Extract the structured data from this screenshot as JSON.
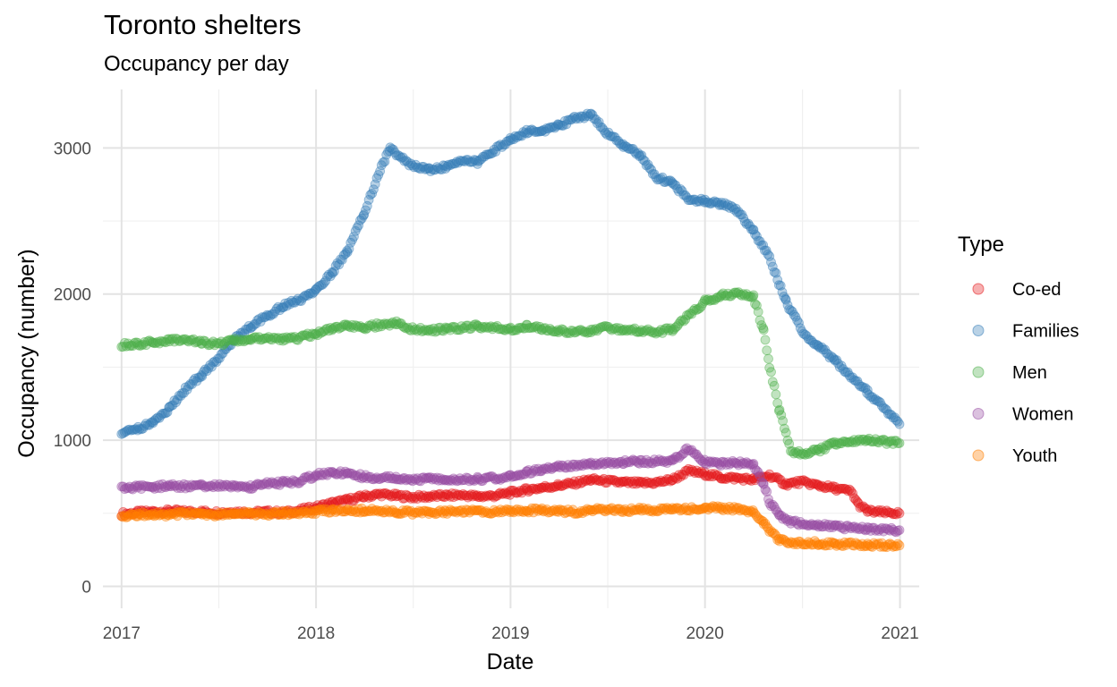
{
  "chart_data": {
    "type": "scatter",
    "title": "Toronto shelters",
    "subtitle": "Occupancy per day",
    "xlabel": "Date",
    "ylabel": "Occupancy (number)",
    "xlim": [
      "2016-11-27",
      "2021-02-06"
    ],
    "ylim": [
      -150,
      3400
    ],
    "x_ticks": [
      "2017",
      "2018",
      "2019",
      "2020",
      "2021"
    ],
    "x_tick_dates": [
      "2017-01-01",
      "2018-01-01",
      "2019-01-01",
      "2020-01-01",
      "2021-01-01"
    ],
    "y_ticks": [
      0,
      1000,
      2000,
      3000
    ],
    "grid": true,
    "legend": {
      "title": "Type",
      "position": "right"
    },
    "point_alpha": 0.35,
    "series": [
      {
        "name": "Co-ed",
        "color": "#E41A1C",
        "points": [
          [
            "2017-01-01",
            495
          ],
          [
            "2017-02-01",
            505
          ],
          [
            "2017-03-01",
            510
          ],
          [
            "2017-04-01",
            515
          ],
          [
            "2017-05-01",
            510
          ],
          [
            "2017-06-01",
            510
          ],
          [
            "2017-07-01",
            505
          ],
          [
            "2017-08-01",
            510
          ],
          [
            "2017-09-01",
            505
          ],
          [
            "2017-10-01",
            510
          ],
          [
            "2017-11-01",
            505
          ],
          [
            "2017-12-01",
            520
          ],
          [
            "2018-01-01",
            540
          ],
          [
            "2018-02-01",
            570
          ],
          [
            "2018-03-01",
            590
          ],
          [
            "2018-04-01",
            615
          ],
          [
            "2018-05-01",
            630
          ],
          [
            "2018-06-01",
            620
          ],
          [
            "2018-07-01",
            610
          ],
          [
            "2018-08-01",
            615
          ],
          [
            "2018-09-01",
            620
          ],
          [
            "2018-10-01",
            625
          ],
          [
            "2018-11-01",
            615
          ],
          [
            "2018-12-01",
            620
          ],
          [
            "2019-01-01",
            640
          ],
          [
            "2019-02-01",
            660
          ],
          [
            "2019-03-01",
            675
          ],
          [
            "2019-04-01",
            690
          ],
          [
            "2019-05-01",
            705
          ],
          [
            "2019-06-01",
            730
          ],
          [
            "2019-07-01",
            720
          ],
          [
            "2019-08-01",
            710
          ],
          [
            "2019-09-01",
            705
          ],
          [
            "2019-10-01",
            710
          ],
          [
            "2019-11-01",
            730
          ],
          [
            "2019-12-01",
            790
          ],
          [
            "2020-01-01",
            770
          ],
          [
            "2020-02-01",
            745
          ],
          [
            "2020-03-01",
            740
          ],
          [
            "2020-04-01",
            730
          ],
          [
            "2020-05-01",
            760
          ],
          [
            "2020-06-01",
            700
          ],
          [
            "2020-07-01",
            715
          ],
          [
            "2020-08-01",
            690
          ],
          [
            "2020-09-01",
            670
          ],
          [
            "2020-10-01",
            650
          ],
          [
            "2020-10-15",
            560
          ],
          [
            "2020-11-01",
            515
          ],
          [
            "2020-12-01",
            505
          ],
          [
            "2020-12-31",
            500
          ]
        ]
      },
      {
        "name": "Families",
        "color": "#377EB8",
        "points": [
          [
            "2017-01-01",
            1040
          ],
          [
            "2017-02-01",
            1080
          ],
          [
            "2017-03-01",
            1120
          ],
          [
            "2017-04-01",
            1220
          ],
          [
            "2017-05-01",
            1350
          ],
          [
            "2017-06-01",
            1450
          ],
          [
            "2017-07-01",
            1560
          ],
          [
            "2017-08-01",
            1690
          ],
          [
            "2017-09-01",
            1780
          ],
          [
            "2017-10-01",
            1850
          ],
          [
            "2017-11-01",
            1920
          ],
          [
            "2017-12-01",
            1960
          ],
          [
            "2018-01-01",
            2020
          ],
          [
            "2018-02-01",
            2150
          ],
          [
            "2018-03-01",
            2300
          ],
          [
            "2018-04-01",
            2550
          ],
          [
            "2018-05-01",
            2850
          ],
          [
            "2018-05-20",
            3000
          ],
          [
            "2018-06-01",
            2950
          ],
          [
            "2018-07-01",
            2880
          ],
          [
            "2018-08-01",
            2850
          ],
          [
            "2018-09-01",
            2870
          ],
          [
            "2018-10-01",
            2920
          ],
          [
            "2018-11-01",
            2900
          ],
          [
            "2018-12-01",
            2980
          ],
          [
            "2019-01-01",
            3060
          ],
          [
            "2019-02-01",
            3110
          ],
          [
            "2019-03-01",
            3120
          ],
          [
            "2019-04-01",
            3150
          ],
          [
            "2019-05-01",
            3200
          ],
          [
            "2019-06-01",
            3230
          ],
          [
            "2019-07-01",
            3100
          ],
          [
            "2019-08-01",
            3020
          ],
          [
            "2019-09-01",
            2950
          ],
          [
            "2019-10-01",
            2800
          ],
          [
            "2019-11-01",
            2760
          ],
          [
            "2019-12-01",
            2650
          ],
          [
            "2020-01-01",
            2640
          ],
          [
            "2020-02-01",
            2620
          ],
          [
            "2020-03-01",
            2570
          ],
          [
            "2020-04-01",
            2430
          ],
          [
            "2020-05-01",
            2250
          ],
          [
            "2020-06-01",
            1950
          ],
          [
            "2020-07-01",
            1750
          ],
          [
            "2020-08-01",
            1640
          ],
          [
            "2020-09-01",
            1550
          ],
          [
            "2020-10-01",
            1430
          ],
          [
            "2020-11-01",
            1330
          ],
          [
            "2020-12-01",
            1230
          ],
          [
            "2020-12-31",
            1110
          ]
        ]
      },
      {
        "name": "Men",
        "color": "#4DAF4A",
        "points": [
          [
            "2017-01-01",
            1650
          ],
          [
            "2017-02-01",
            1660
          ],
          [
            "2017-03-01",
            1670
          ],
          [
            "2017-04-01",
            1680
          ],
          [
            "2017-05-01",
            1690
          ],
          [
            "2017-06-01",
            1670
          ],
          [
            "2017-07-01",
            1660
          ],
          [
            "2017-08-01",
            1680
          ],
          [
            "2017-09-01",
            1690
          ],
          [
            "2017-10-01",
            1700
          ],
          [
            "2017-11-01",
            1690
          ],
          [
            "2017-12-01",
            1700
          ],
          [
            "2018-01-01",
            1730
          ],
          [
            "2018-02-01",
            1760
          ],
          [
            "2018-03-01",
            1780
          ],
          [
            "2018-04-01",
            1770
          ],
          [
            "2018-05-01",
            1790
          ],
          [
            "2018-06-01",
            1800
          ],
          [
            "2018-07-01",
            1760
          ],
          [
            "2018-08-01",
            1750
          ],
          [
            "2018-09-01",
            1760
          ],
          [
            "2018-10-01",
            1770
          ],
          [
            "2018-11-01",
            1780
          ],
          [
            "2018-12-01",
            1770
          ],
          [
            "2019-01-01",
            1760
          ],
          [
            "2019-02-01",
            1780
          ],
          [
            "2019-03-01",
            1760
          ],
          [
            "2019-04-01",
            1750
          ],
          [
            "2019-05-01",
            1740
          ],
          [
            "2019-06-01",
            1750
          ],
          [
            "2019-07-01",
            1770
          ],
          [
            "2019-08-01",
            1760
          ],
          [
            "2019-09-01",
            1750
          ],
          [
            "2019-10-01",
            1740
          ],
          [
            "2019-11-01",
            1760
          ],
          [
            "2019-12-01",
            1850
          ],
          [
            "2020-01-01",
            1950
          ],
          [
            "2020-02-01",
            1990
          ],
          [
            "2020-03-01",
            2000
          ],
          [
            "2020-04-01",
            1980
          ],
          [
            "2020-04-20",
            1750
          ],
          [
            "2020-05-01",
            1500
          ],
          [
            "2020-05-20",
            1200
          ],
          [
            "2020-06-10",
            920
          ],
          [
            "2020-07-01",
            910
          ],
          [
            "2020-08-01",
            930
          ],
          [
            "2020-09-01",
            980
          ],
          [
            "2020-10-01",
            990
          ],
          [
            "2020-11-01",
            1000
          ],
          [
            "2020-12-31",
            980
          ]
        ]
      },
      {
        "name": "Women",
        "color": "#984EA3",
        "points": [
          [
            "2017-01-01",
            670
          ],
          [
            "2017-02-01",
            680
          ],
          [
            "2017-03-01",
            680
          ],
          [
            "2017-04-01",
            690
          ],
          [
            "2017-05-01",
            685
          ],
          [
            "2017-06-01",
            690
          ],
          [
            "2017-07-01",
            685
          ],
          [
            "2017-08-01",
            690
          ],
          [
            "2017-09-01",
            680
          ],
          [
            "2017-10-01",
            700
          ],
          [
            "2017-11-01",
            710
          ],
          [
            "2017-12-01",
            720
          ],
          [
            "2018-01-01",
            760
          ],
          [
            "2018-02-01",
            780
          ],
          [
            "2018-03-01",
            770
          ],
          [
            "2018-04-01",
            750
          ],
          [
            "2018-05-01",
            745
          ],
          [
            "2018-06-01",
            740
          ],
          [
            "2018-07-01",
            730
          ],
          [
            "2018-08-01",
            735
          ],
          [
            "2018-09-01",
            730
          ],
          [
            "2018-10-01",
            730
          ],
          [
            "2018-11-01",
            735
          ],
          [
            "2018-12-01",
            740
          ],
          [
            "2019-01-01",
            750
          ],
          [
            "2019-02-01",
            780
          ],
          [
            "2019-03-01",
            800
          ],
          [
            "2019-04-01",
            820
          ],
          [
            "2019-05-01",
            830
          ],
          [
            "2019-06-01",
            840
          ],
          [
            "2019-07-01",
            845
          ],
          [
            "2019-08-01",
            850
          ],
          [
            "2019-09-01",
            855
          ],
          [
            "2019-10-01",
            855
          ],
          [
            "2019-11-01",
            860
          ],
          [
            "2019-12-01",
            940
          ],
          [
            "2020-01-01",
            850
          ],
          [
            "2020-02-01",
            840
          ],
          [
            "2020-03-01",
            845
          ],
          [
            "2020-04-01",
            830
          ],
          [
            "2020-04-20",
            700
          ],
          [
            "2020-05-01",
            580
          ],
          [
            "2020-05-20",
            480
          ],
          [
            "2020-06-10",
            440
          ],
          [
            "2020-07-01",
            430
          ],
          [
            "2020-08-01",
            420
          ],
          [
            "2020-09-01",
            410
          ],
          [
            "2020-10-01",
            400
          ],
          [
            "2020-11-01",
            390
          ],
          [
            "2020-12-31",
            385
          ]
        ]
      },
      {
        "name": "Youth",
        "color": "#FF7F00",
        "points": [
          [
            "2017-01-01",
            480
          ],
          [
            "2017-02-01",
            490
          ],
          [
            "2017-03-01",
            495
          ],
          [
            "2017-04-01",
            490
          ],
          [
            "2017-05-01",
            500
          ],
          [
            "2017-06-01",
            495
          ],
          [
            "2017-07-01",
            490
          ],
          [
            "2017-08-01",
            495
          ],
          [
            "2017-09-01",
            500
          ],
          [
            "2017-10-01",
            495
          ],
          [
            "2017-11-01",
            500
          ],
          [
            "2017-12-01",
            505
          ],
          [
            "2018-01-01",
            510
          ],
          [
            "2018-02-01",
            520
          ],
          [
            "2018-03-01",
            515
          ],
          [
            "2018-04-01",
            520
          ],
          [
            "2018-05-01",
            515
          ],
          [
            "2018-06-01",
            510
          ],
          [
            "2018-07-01",
            505
          ],
          [
            "2018-08-01",
            505
          ],
          [
            "2018-09-01",
            510
          ],
          [
            "2018-10-01",
            515
          ],
          [
            "2018-11-01",
            510
          ],
          [
            "2018-12-01",
            510
          ],
          [
            "2019-01-01",
            515
          ],
          [
            "2019-02-01",
            520
          ],
          [
            "2019-03-01",
            520
          ],
          [
            "2019-04-01",
            515
          ],
          [
            "2019-05-01",
            510
          ],
          [
            "2019-06-01",
            520
          ],
          [
            "2019-07-01",
            525
          ],
          [
            "2019-08-01",
            520
          ],
          [
            "2019-09-01",
            525
          ],
          [
            "2019-10-01",
            525
          ],
          [
            "2019-11-01",
            530
          ],
          [
            "2019-12-01",
            530
          ],
          [
            "2020-01-01",
            535
          ],
          [
            "2020-02-01",
            535
          ],
          [
            "2020-03-01",
            530
          ],
          [
            "2020-04-01",
            515
          ],
          [
            "2020-04-20",
            440
          ],
          [
            "2020-05-01",
            380
          ],
          [
            "2020-05-20",
            320
          ],
          [
            "2020-06-10",
            300
          ],
          [
            "2020-07-01",
            300
          ],
          [
            "2020-08-01",
            295
          ],
          [
            "2020-09-01",
            290
          ],
          [
            "2020-10-01",
            290
          ],
          [
            "2020-11-01",
            285
          ],
          [
            "2020-12-31",
            280
          ]
        ]
      }
    ]
  }
}
